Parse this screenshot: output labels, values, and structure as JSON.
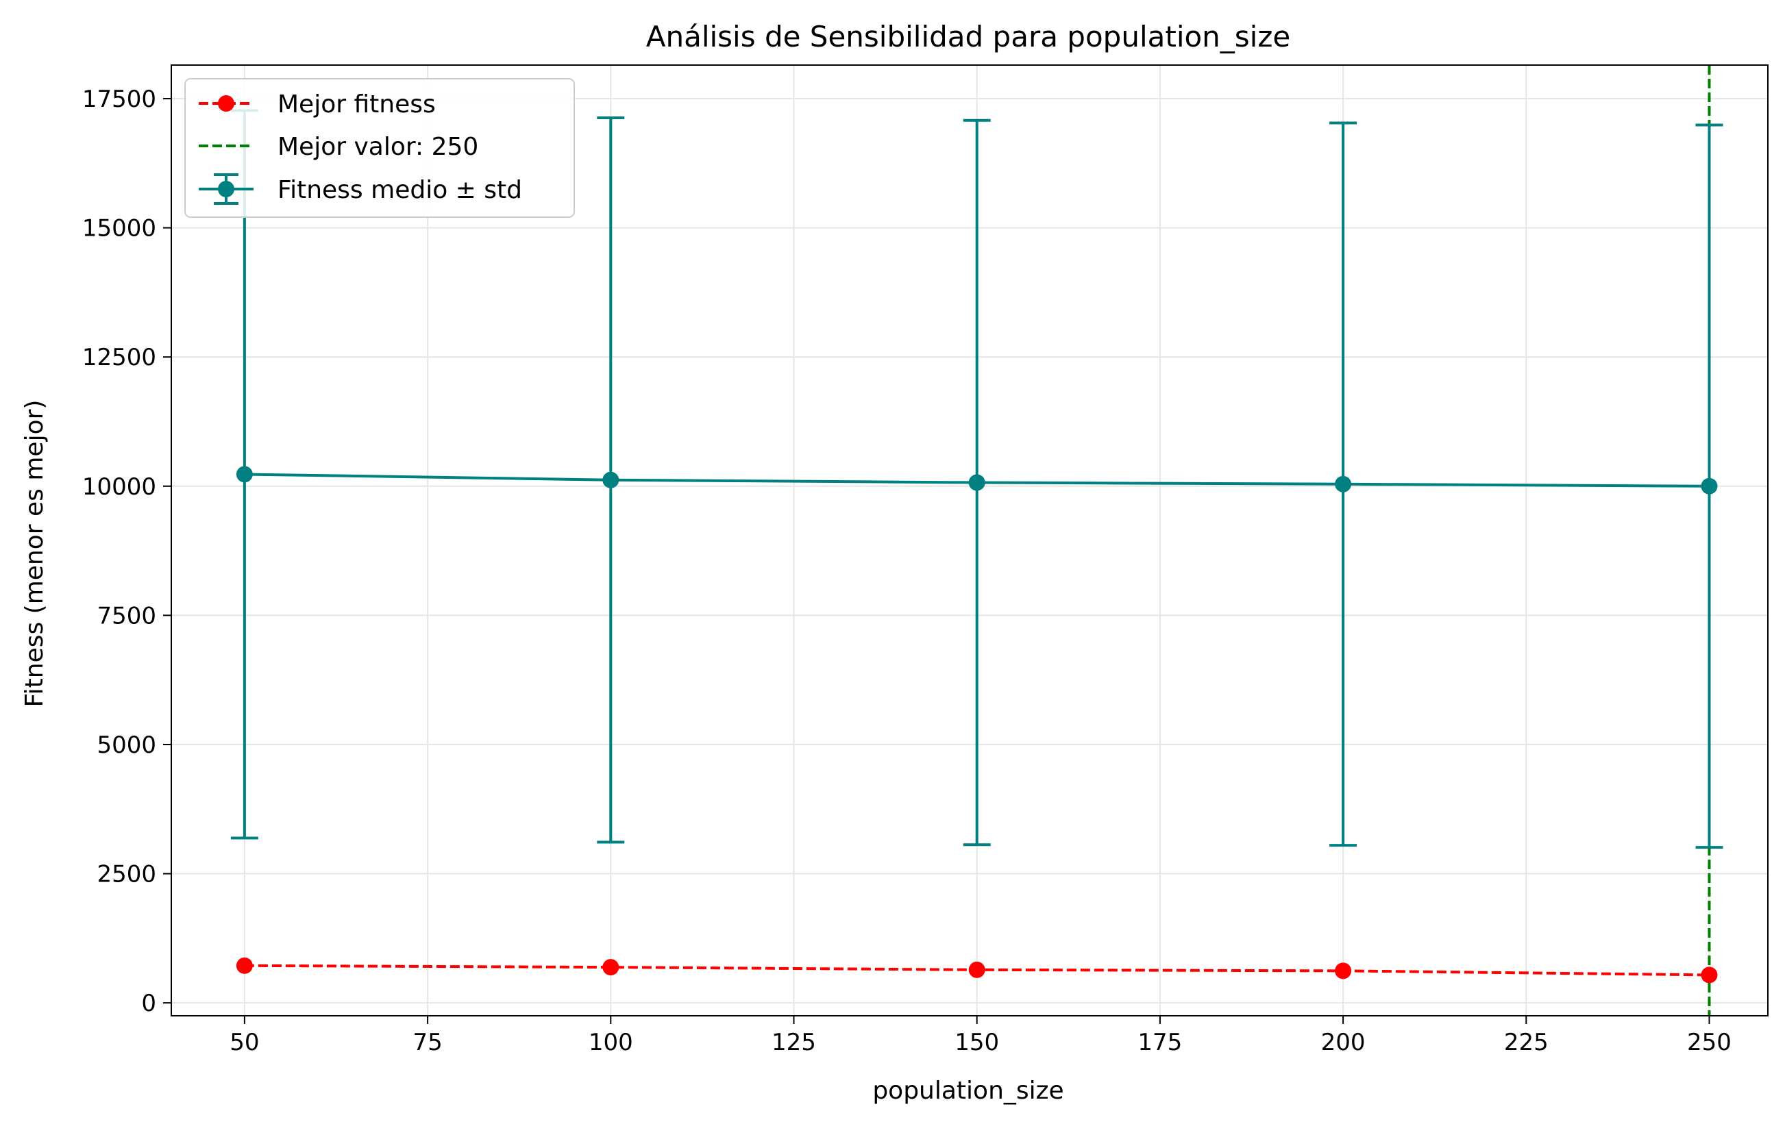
{
  "chart_data": {
    "type": "line",
    "title": "Análisis de Sensibilidad para population_size",
    "xlabel": "population_size",
    "ylabel": "Fitness (menor es mejor)",
    "x": [
      50,
      100,
      150,
      200,
      250
    ],
    "xlim": [
      40,
      258
    ],
    "ylim": [
      -250,
      18150
    ],
    "xticks": [
      50,
      75,
      100,
      125,
      150,
      175,
      200,
      225,
      250
    ],
    "yticks": [
      0,
      2500,
      5000,
      7500,
      10000,
      12500,
      15000,
      17500
    ],
    "grid": true,
    "legend_position": "top-left",
    "series": [
      {
        "name": "Mejor fitness",
        "style": "dashed-line-circle-markers",
        "color": "#ff0000",
        "values": [
          720,
          690,
          640,
          620,
          540
        ]
      },
      {
        "name": "Fitness medio ± std",
        "style": "solid-line-circle-markers-errorbars",
        "color": "#008080",
        "values": [
          10230,
          10120,
          10070,
          10040,
          10000
        ],
        "std": [
          7040,
          7010,
          7010,
          6990,
          6990
        ]
      }
    ],
    "reference_line": {
      "label": "Mejor valor: 250",
      "orientation": "vertical",
      "x": 250,
      "color": "#008000",
      "style": "dashed"
    }
  }
}
